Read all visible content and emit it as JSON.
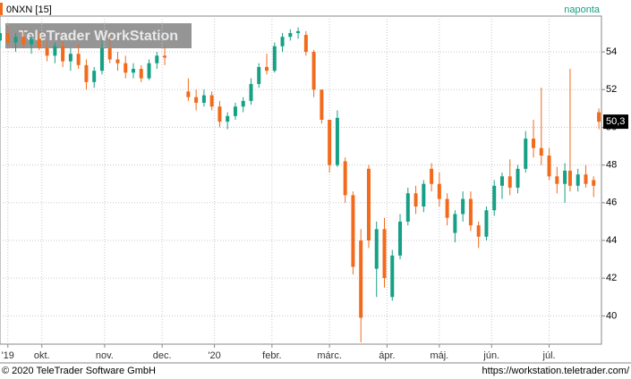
{
  "chart_data": {
    "type": "candlestick",
    "symbol": "0NXN [15]",
    "interval": "naponta",
    "watermark": "TeleTrader WorkStation",
    "copyright": "© 2020 TeleTrader Software GmbH",
    "url": "https://workstation.teletrader.com/",
    "up_color": "#16a085",
    "down_color": "#f26a1b",
    "grid": true,
    "last_price": 50.3,
    "last_price_label": "50,3",
    "xlim": [
      0,
      230
    ],
    "ylim": [
      38.5,
      55.9
    ],
    "yticks": [
      40,
      42,
      44,
      46,
      48,
      50,
      52,
      54
    ],
    "xticks": [
      {
        "value": 3,
        "label": "'19"
      },
      {
        "value": 16,
        "label": "okt."
      },
      {
        "value": 40,
        "label": "nov."
      },
      {
        "value": 62,
        "label": "dec."
      },
      {
        "value": 82,
        "label": "'20"
      },
      {
        "value": 104,
        "label": "febr."
      },
      {
        "value": 126,
        "label": "márc."
      },
      {
        "value": 148,
        "label": "ápr."
      },
      {
        "value": 168,
        "label": "máj."
      },
      {
        "value": 188,
        "label": "jún."
      },
      {
        "value": 210,
        "label": "júl."
      }
    ],
    "x": [
      0,
      3,
      6,
      9,
      12,
      15,
      18,
      21,
      24,
      27,
      30,
      33,
      36,
      39,
      42,
      45,
      48,
      51,
      54,
      57,
      60,
      63,
      72,
      75,
      78,
      81,
      84,
      87,
      90,
      93,
      96,
      99,
      102,
      105,
      108,
      111,
      114,
      117,
      120,
      123,
      126,
      129,
      132,
      135,
      138,
      141,
      144,
      147,
      150,
      153,
      156,
      159,
      162,
      165,
      168,
      171,
      174,
      177,
      180,
      183,
      186,
      189,
      192,
      195,
      198,
      201,
      204,
      207,
      210,
      213,
      216,
      218,
      221,
      224,
      227,
      229
    ],
    "open": [
      54.6,
      55.0,
      54.5,
      54.8,
      54.4,
      54.7,
      54.2,
      53.8,
      54.3,
      53.5,
      53.9,
      53.3,
      52.4,
      53.0,
      54.2,
      53.6,
      53.4,
      52.9,
      53.1,
      52.6,
      53.4,
      53.8,
      51.9,
      51.6,
      51.3,
      51.7,
      51.1,
      50.3,
      50.6,
      51.1,
      51.4,
      52.3,
      53.2,
      53.0,
      54.3,
      54.8,
      55.0,
      54.9,
      54.0,
      52.0,
      50.4,
      48.0,
      48.2,
      46.4,
      44.0,
      47.8,
      42.5,
      44.6,
      41.0,
      43.2,
      45.0,
      46.5,
      45.8,
      47.8,
      47.0,
      46.2,
      44.4,
      45.4,
      46.2,
      44.8,
      44.2,
      45.6,
      46.9,
      47.4,
      46.8,
      47.8,
      49.4,
      48.9,
      48.5,
      47.4,
      47.0,
      47.7,
      46.9,
      47.5,
      47.2,
      50.8
    ],
    "high": [
      55.3,
      55.4,
      55.0,
      55.2,
      54.9,
      55.1,
      54.6,
      54.5,
      54.6,
      54.2,
      54.4,
      53.6,
      53.2,
      54.6,
      54.8,
      54.0,
      53.8,
      53.4,
      53.3,
      53.6,
      54.0,
      54.3,
      52.6,
      52.0,
      52.0,
      51.9,
      51.4,
      50.8,
      51.3,
      51.6,
      52.6,
      53.4,
      53.9,
      54.5,
      55.0,
      55.2,
      55.3,
      55.1,
      54.1,
      52.0,
      50.4,
      50.9,
      48.4,
      46.6,
      44.6,
      48.0,
      45.0,
      45.2,
      43.5,
      45.4,
      46.8,
      46.9,
      47.2,
      48.1,
      47.6,
      46.5,
      45.6,
      46.6,
      46.6,
      45.0,
      45.8,
      47.2,
      47.6,
      48.3,
      48.0,
      49.8,
      50.4,
      52.1,
      48.9,
      47.9,
      48.1,
      53.1,
      47.8,
      48.0,
      47.4,
      51.0
    ],
    "low": [
      54.2,
      54.3,
      54.0,
      54.2,
      53.9,
      54.1,
      53.5,
      53.4,
      53.2,
      53.0,
      53.1,
      52.0,
      52.1,
      52.8,
      53.4,
      53.0,
      52.6,
      52.6,
      52.4,
      52.5,
      53.1,
      53.3,
      51.4,
      50.9,
      51.1,
      50.9,
      50.0,
      49.9,
      50.4,
      50.8,
      51.2,
      52.1,
      52.8,
      52.9,
      54.0,
      54.6,
      54.7,
      53.8,
      51.6,
      50.2,
      47.6,
      47.9,
      46.0,
      42.2,
      38.6,
      43.6,
      41.0,
      41.5,
      40.8,
      43.0,
      44.8,
      45.4,
      45.5,
      46.6,
      45.8,
      44.8,
      43.9,
      45.0,
      44.5,
      43.6,
      44.0,
      45.3,
      46.2,
      46.4,
      46.5,
      47.6,
      48.4,
      48.0,
      47.2,
      46.5,
      46.0,
      46.6,
      46.6,
      46.8,
      46.3,
      49.9
    ],
    "close": [
      55.0,
      54.5,
      54.8,
      54.4,
      54.7,
      54.2,
      53.8,
      54.3,
      53.5,
      53.9,
      53.3,
      52.4,
      53.0,
      54.2,
      53.6,
      53.4,
      52.9,
      53.1,
      52.6,
      53.4,
      53.8,
      53.7,
      51.6,
      51.3,
      51.7,
      51.1,
      50.3,
      50.6,
      51.1,
      51.4,
      52.3,
      53.2,
      53.0,
      54.3,
      54.8,
      55.0,
      55.1,
      54.0,
      52.0,
      50.4,
      48.0,
      50.5,
      46.4,
      42.6,
      39.9,
      44.0,
      44.6,
      42.0,
      43.2,
      45.0,
      46.5,
      45.8,
      47.0,
      47.0,
      46.2,
      45.2,
      45.4,
      46.2,
      44.8,
      44.2,
      45.6,
      46.9,
      47.4,
      46.8,
      47.8,
      49.4,
      48.9,
      48.5,
      47.4,
      47.0,
      47.7,
      46.9,
      47.5,
      47.0,
      46.9,
      50.3
    ]
  }
}
